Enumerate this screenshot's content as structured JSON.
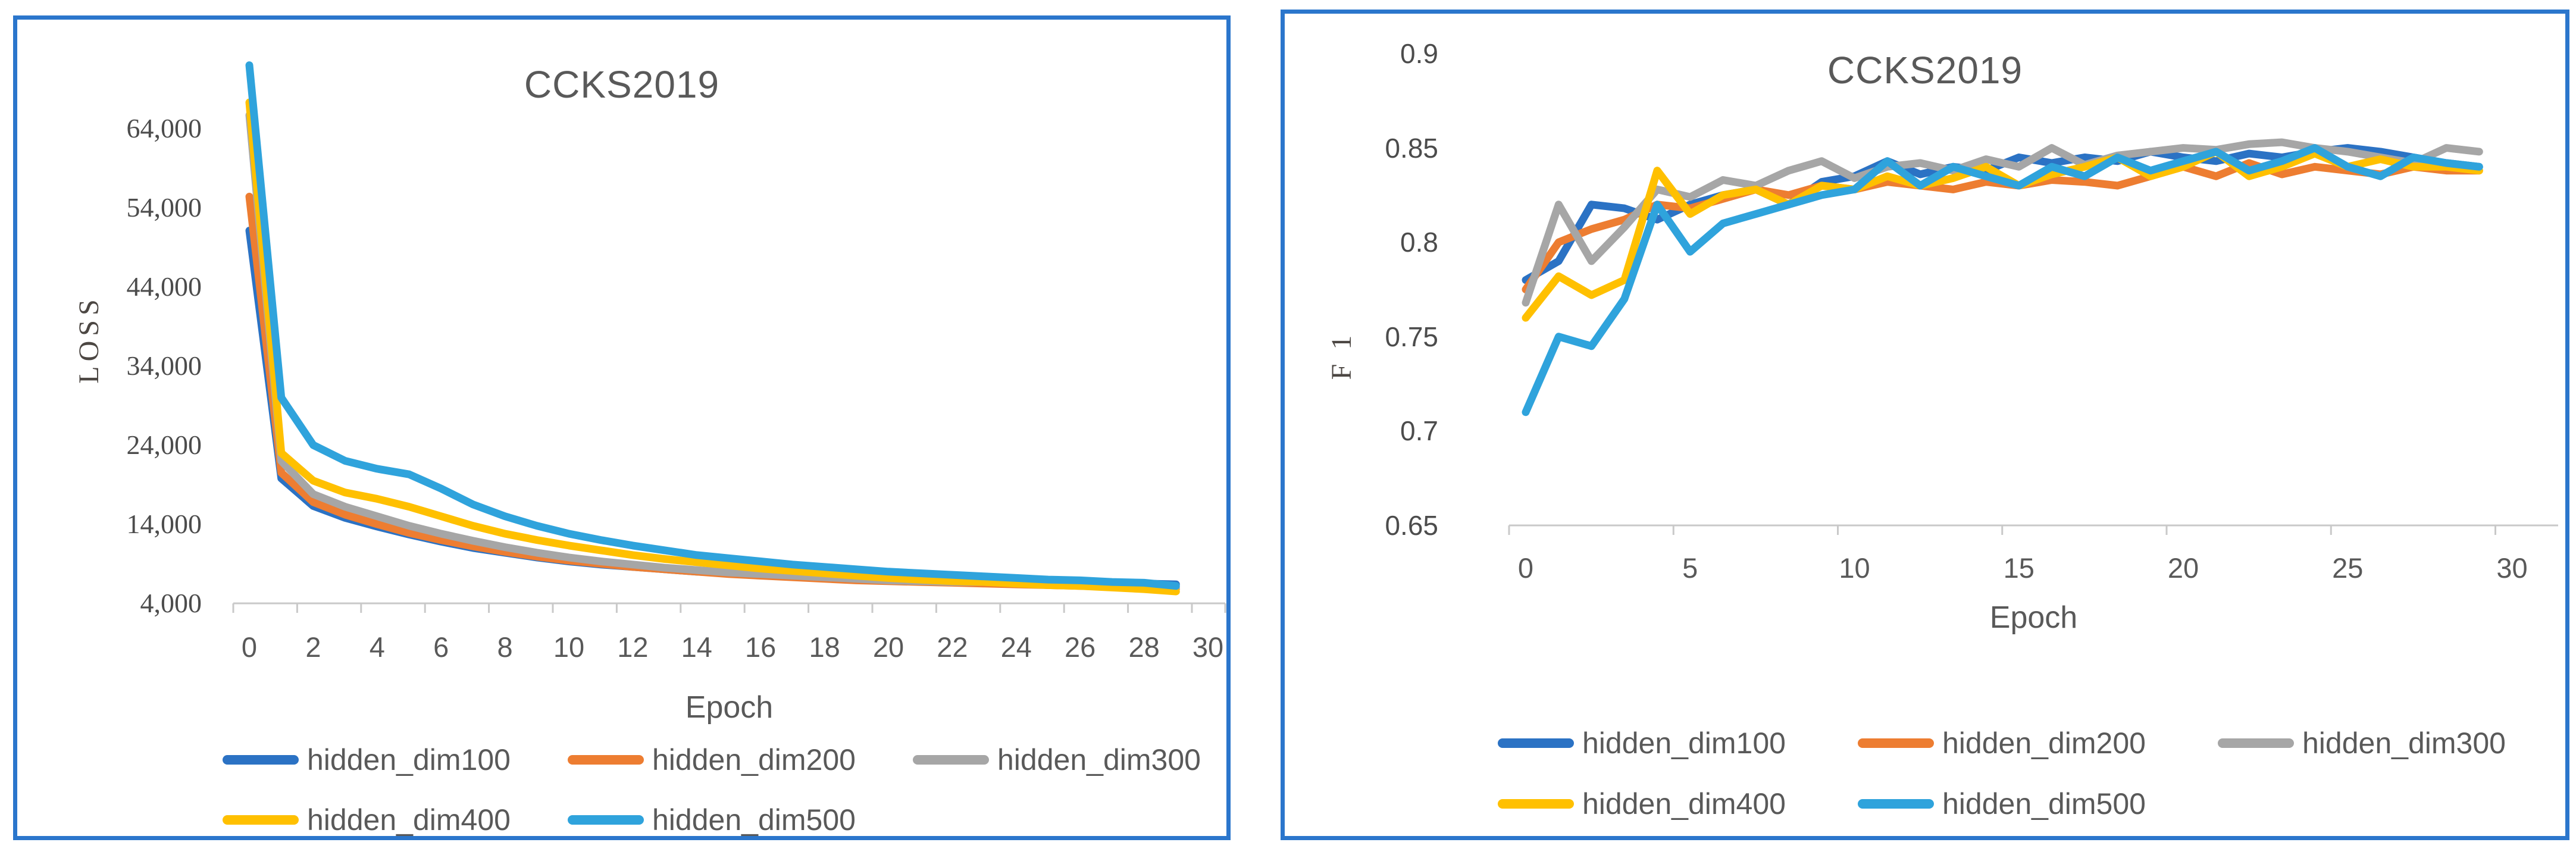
{
  "style": {
    "panel_border_color": "#2B76CC",
    "axis_color": "#C9C9C9",
    "tick_text_color": "#595959",
    "title_color": "#595959"
  },
  "chart_data": [
    {
      "type": "line",
      "title": "CCKS2019",
      "xlabel": "Epoch",
      "ylabel": "LOSS",
      "legend_position": "bottom",
      "gridlines": false,
      "ylim": [
        4000,
        74000
      ],
      "xlim": [
        0,
        30
      ],
      "x": [
        0,
        1,
        2,
        3,
        4,
        5,
        6,
        7,
        8,
        9,
        10,
        11,
        12,
        13,
        14,
        15,
        16,
        17,
        18,
        19,
        20,
        21,
        22,
        23,
        24,
        25,
        26,
        27,
        28,
        29
      ],
      "x_ticks": [
        0,
        2,
        4,
        6,
        8,
        10,
        12,
        14,
        16,
        18,
        20,
        22,
        24,
        26,
        28,
        30
      ],
      "y_ticks": [
        {
          "value": 64000,
          "label": "64,000"
        },
        {
          "value": 54000,
          "label": "54,000"
        },
        {
          "value": 44000,
          "label": "44,000"
        },
        {
          "value": 34000,
          "label": "34,000"
        },
        {
          "value": 24000,
          "label": "24,000"
        },
        {
          "value": 14000,
          "label": "14,000"
        },
        {
          "value": 4000,
          "label": "4,000"
        }
      ],
      "series": [
        {
          "name": "hidden_dim100",
          "color": "#2B72C4",
          "values": [
            51100,
            19800,
            16300,
            14800,
            13700,
            12700,
            11800,
            11000,
            10400,
            9800,
            9300,
            8900,
            8600,
            8300,
            8000,
            7800,
            7600,
            7400,
            7300,
            7100,
            7000,
            6900,
            6800,
            6800,
            6700,
            6700,
            6600,
            6600,
            6500,
            6400
          ]
        },
        {
          "name": "hidden_dim200",
          "color": "#ED7D31",
          "values": [
            55400,
            20500,
            16800,
            15200,
            14000,
            12900,
            12000,
            11200,
            10500,
            9900,
            9400,
            9000,
            8600,
            8300,
            8000,
            7700,
            7500,
            7300,
            7100,
            6900,
            6800,
            6700,
            6600,
            6500,
            6400,
            6300,
            6200,
            6100,
            6000,
            5800
          ]
        },
        {
          "name": "hidden_dim300",
          "color": "#A6A6A6",
          "values": [
            65700,
            22000,
            17800,
            16200,
            15000,
            13800,
            12800,
            11900,
            11100,
            10400,
            9800,
            9300,
            8900,
            8500,
            8200,
            7900,
            7700,
            7500,
            7300,
            7100,
            6900,
            6800,
            6700,
            6700,
            6600,
            6500,
            6400,
            6300,
            6200,
            6000
          ]
        },
        {
          "name": "hidden_dim400",
          "color": "#FFC000",
          "values": [
            67300,
            23000,
            19500,
            18000,
            17200,
            16200,
            15000,
            13800,
            12800,
            12000,
            11300,
            10700,
            10100,
            9600,
            9200,
            8800,
            8400,
            8100,
            7800,
            7500,
            7200,
            7000,
            6800,
            6700,
            6500,
            6300,
            6200,
            6000,
            5800,
            5500
          ]
        },
        {
          "name": "hidden_dim500",
          "color": "#2FA3DC",
          "values": [
            72000,
            30000,
            24000,
            22000,
            21000,
            20300,
            18500,
            16500,
            15000,
            13800,
            12800,
            12000,
            11300,
            10700,
            10100,
            9700,
            9300,
            8900,
            8600,
            8300,
            8000,
            7800,
            7600,
            7400,
            7200,
            7000,
            6900,
            6700,
            6600,
            6200
          ]
        }
      ]
    },
    {
      "type": "line",
      "title": "CCKS2019",
      "xlabel": "Epoch",
      "ylabel": "F 1",
      "legend_position": "bottom",
      "gridlines": false,
      "ylim": [
        0.65,
        0.9
      ],
      "xlim": [
        0,
        30
      ],
      "x": [
        0,
        1,
        2,
        3,
        4,
        5,
        6,
        7,
        8,
        9,
        10,
        11,
        12,
        13,
        14,
        15,
        16,
        17,
        18,
        19,
        20,
        21,
        22,
        23,
        24,
        25,
        26,
        27,
        28,
        29
      ],
      "x_ticks": [
        0,
        5,
        10,
        15,
        20,
        25,
        30
      ],
      "y_ticks": [
        {
          "value": 0.9,
          "label": "0.9"
        },
        {
          "value": 0.85,
          "label": "0.85"
        },
        {
          "value": 0.8,
          "label": "0.8"
        },
        {
          "value": 0.75,
          "label": "0.75"
        },
        {
          "value": 0.7,
          "label": "0.7"
        },
        {
          "value": 0.65,
          "label": "0.65"
        }
      ],
      "series": [
        {
          "name": "hidden_dim100",
          "color": "#2B72C4",
          "values": [
            0.78,
            0.79,
            0.82,
            0.818,
            0.812,
            0.82,
            0.825,
            0.828,
            0.82,
            0.832,
            0.835,
            0.843,
            0.836,
            0.84,
            0.838,
            0.845,
            0.842,
            0.845,
            0.843,
            0.848,
            0.845,
            0.843,
            0.847,
            0.845,
            0.848,
            0.85,
            0.848,
            0.845,
            0.842,
            0.84
          ]
        },
        {
          "name": "hidden_dim200",
          "color": "#ED7D31",
          "values": [
            0.775,
            0.8,
            0.807,
            0.812,
            0.82,
            0.818,
            0.823,
            0.828,
            0.825,
            0.83,
            0.828,
            0.832,
            0.83,
            0.828,
            0.832,
            0.83,
            0.833,
            0.832,
            0.83,
            0.835,
            0.84,
            0.835,
            0.842,
            0.836,
            0.84,
            0.838,
            0.836,
            0.84,
            0.838,
            0.838
          ]
        },
        {
          "name": "hidden_dim300",
          "color": "#A6A6A6",
          "values": [
            0.768,
            0.82,
            0.79,
            0.808,
            0.828,
            0.824,
            0.833,
            0.83,
            0.838,
            0.843,
            0.834,
            0.84,
            0.842,
            0.838,
            0.844,
            0.84,
            0.85,
            0.841,
            0.846,
            0.848,
            0.85,
            0.849,
            0.852,
            0.853,
            0.85,
            0.848,
            0.845,
            0.842,
            0.85,
            0.848
          ]
        },
        {
          "name": "hidden_dim400",
          "color": "#FFC000",
          "values": [
            0.76,
            0.782,
            0.772,
            0.78,
            0.838,
            0.815,
            0.825,
            0.828,
            0.82,
            0.83,
            0.828,
            0.835,
            0.83,
            0.834,
            0.84,
            0.83,
            0.836,
            0.84,
            0.845,
            0.835,
            0.84,
            0.848,
            0.835,
            0.84,
            0.847,
            0.84,
            0.844,
            0.84,
            0.84,
            0.838
          ]
        },
        {
          "name": "hidden_dim500",
          "color": "#2FA3DC",
          "values": [
            0.71,
            0.75,
            0.745,
            0.77,
            0.82,
            0.795,
            0.81,
            0.815,
            0.82,
            0.825,
            0.828,
            0.843,
            0.83,
            0.84,
            0.835,
            0.83,
            0.84,
            0.835,
            0.845,
            0.838,
            0.843,
            0.848,
            0.838,
            0.843,
            0.85,
            0.84,
            0.835,
            0.845,
            0.842,
            0.84
          ]
        }
      ]
    }
  ]
}
